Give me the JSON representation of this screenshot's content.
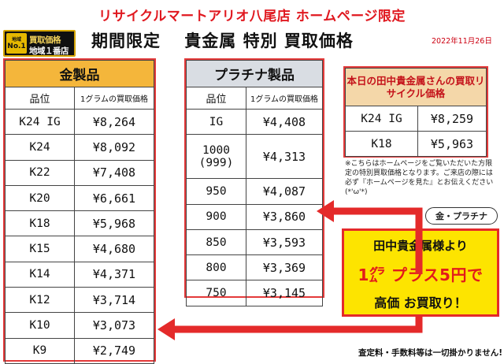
{
  "header": {
    "top_title": "リサイクルマートアリオ八尾店 ホームページ限定",
    "main_title": "期間限定　 貴金属 特別 買取価格",
    "date": "2022年11月26日"
  },
  "badge": {
    "no1_small": "地域",
    "no1": "No.1",
    "line1": "買取価格",
    "line2": "地域１番店"
  },
  "gold_table": {
    "title": "金製品",
    "col_purity": "品位",
    "col_price": "1グラムの買取価格",
    "rows": [
      {
        "purity": "K24 IG",
        "price": "¥8,264"
      },
      {
        "purity": "K24",
        "price": "¥8,092"
      },
      {
        "purity": "K22",
        "price": "¥7,408"
      },
      {
        "purity": "K20",
        "price": "¥6,661"
      },
      {
        "purity": "K18",
        "price": "¥5,968"
      },
      {
        "purity": "K15",
        "price": "¥4,680"
      },
      {
        "purity": "K14",
        "price": "¥4,371"
      },
      {
        "purity": "K12",
        "price": "¥3,714"
      },
      {
        "purity": "K10",
        "price": "¥3,073"
      },
      {
        "purity": "K9",
        "price": "¥2,749"
      }
    ]
  },
  "platinum_table": {
    "title": "プラチナ製品",
    "col_purity": "品位",
    "col_price": "1グラムの買取価格",
    "rows": [
      {
        "purity": "IG",
        "price": "¥4,408"
      },
      {
        "purity": "1000",
        "purity2": "(999)",
        "price": "¥4,313"
      },
      {
        "purity": "950",
        "price": "¥4,087"
      },
      {
        "purity": "900",
        "price": "¥3,860"
      },
      {
        "purity": "850",
        "price": "¥3,593"
      },
      {
        "purity": "800",
        "price": "¥3,369"
      },
      {
        "purity": "750",
        "price": "¥3,145"
      }
    ]
  },
  "today_table": {
    "title": "本日の田中貴金属さんの買取リサイクル価格",
    "rows": [
      {
        "purity": "K24 IG",
        "price": "¥8,259"
      },
      {
        "purity": "K18",
        "price": "¥5,963"
      }
    ]
  },
  "note": "※こちらはホームページをご覧いただいた方限定の特別買取価格となります。ご来店の際には必ず『ホームページを見た』とお伝えください(*'ω'*)",
  "tag": "金・プラチナ",
  "promo": {
    "line1": "田中貴金属様より",
    "line2": "1㌘ プラス5円で",
    "line3": "高価 お買取り！"
  },
  "footer_note": "査定料・手数料等は一切掛かりません!",
  "colors": {
    "title_red": "#e0181f",
    "gold_header": "#f4b63b",
    "platinum_header": "#d9dde3",
    "promo_yellow": "#fde400",
    "arrow_red": "#e42a2a"
  }
}
